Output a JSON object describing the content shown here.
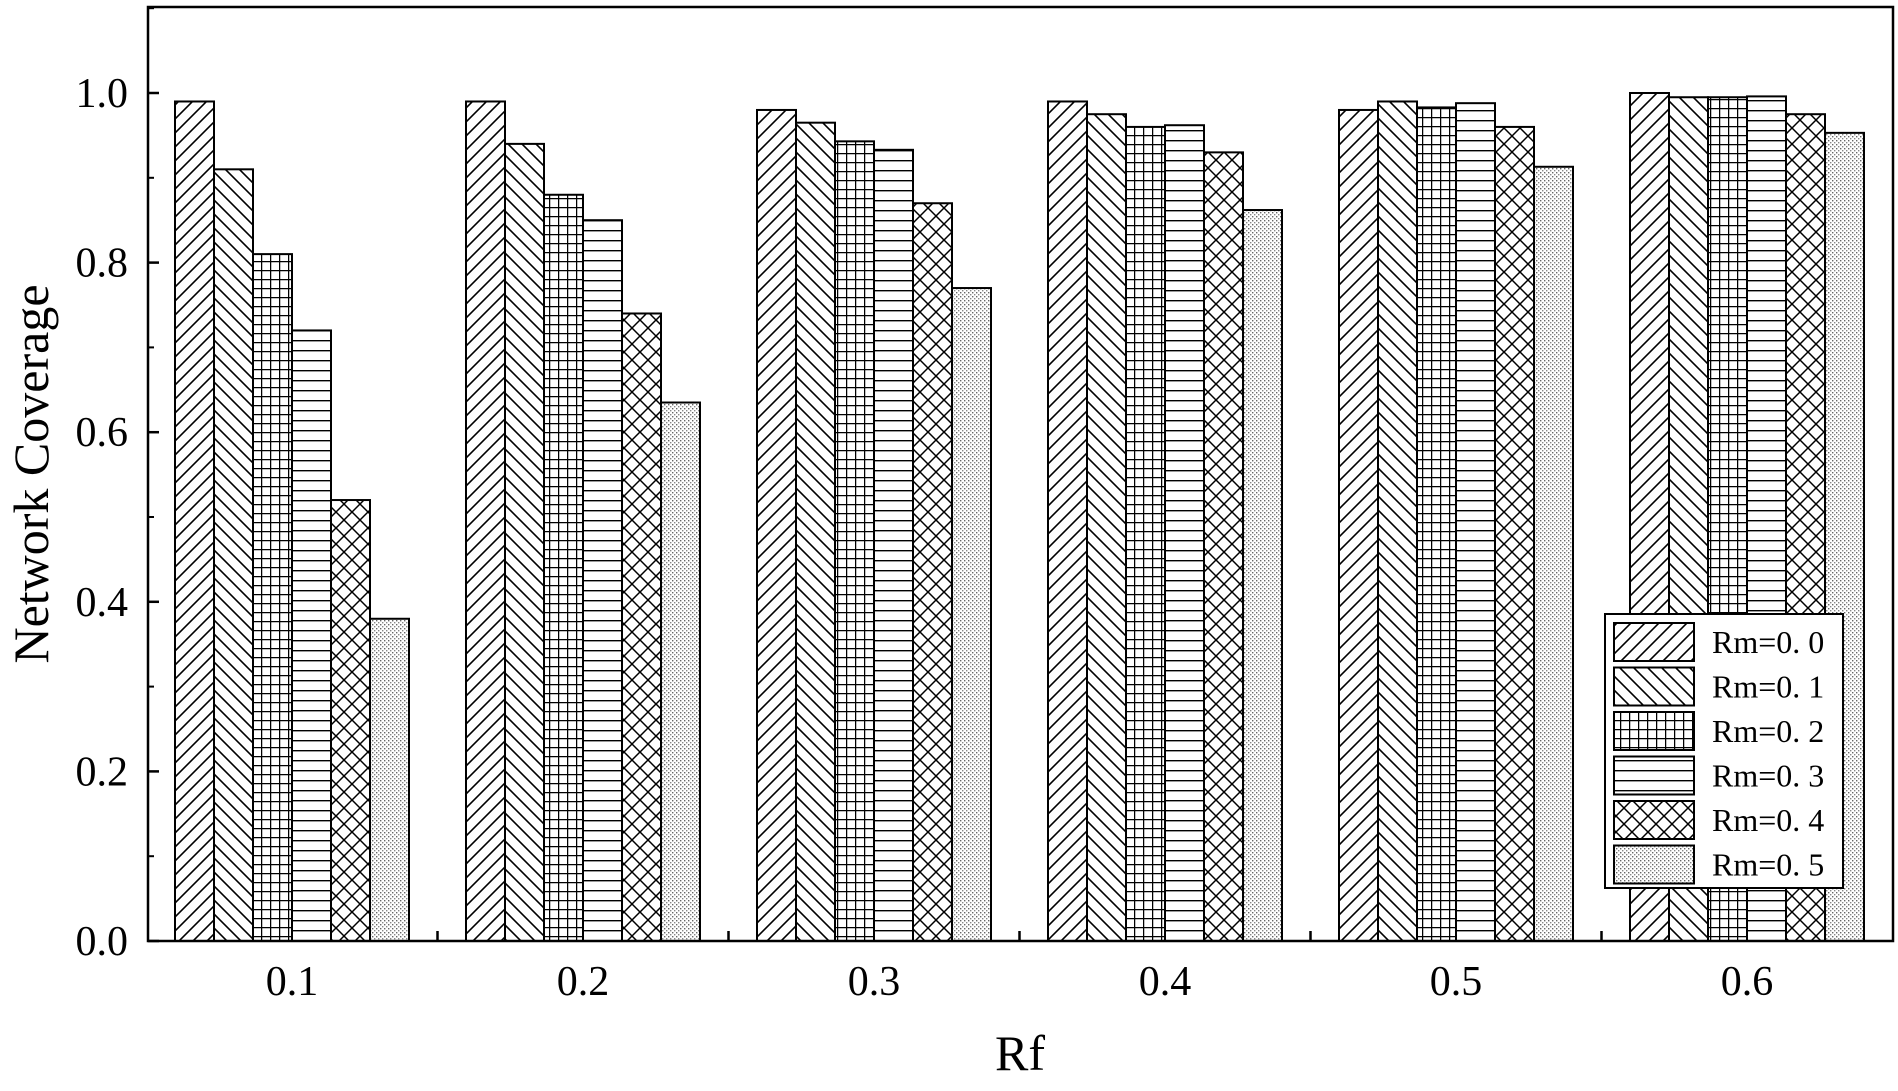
{
  "chart_data": {
    "type": "bar",
    "title": "",
    "xlabel": "Rf",
    "ylabel": "Network Coverage",
    "ylim": [
      0,
      1.1
    ],
    "yticks": [
      "0.0",
      "0.2",
      "0.4",
      "0.6",
      "0.8",
      "1.0"
    ],
    "categories": [
      "0.1",
      "0.2",
      "0.3",
      "0.4",
      "0.5",
      "0.6"
    ],
    "grid": false,
    "legend_position": "bottom-right",
    "series": [
      {
        "name": "Rm=0. 0",
        "pattern": "diag-up",
        "values": [
          0.99,
          0.99,
          0.98,
          0.99,
          0.98,
          1.0
        ]
      },
      {
        "name": "Rm=0. 1",
        "pattern": "diag-down",
        "values": [
          0.91,
          0.94,
          0.965,
          0.975,
          0.99,
          0.995
        ]
      },
      {
        "name": "Rm=0. 2",
        "pattern": "grid",
        "values": [
          0.81,
          0.88,
          0.943,
          0.96,
          0.983,
          0.995
        ]
      },
      {
        "name": "Rm=0. 3",
        "pattern": "horizontal",
        "values": [
          0.72,
          0.85,
          0.933,
          0.962,
          0.988,
          0.996
        ]
      },
      {
        "name": "Rm=0. 4",
        "pattern": "crosshatch",
        "values": [
          0.52,
          0.74,
          0.87,
          0.93,
          0.96,
          0.975
        ]
      },
      {
        "name": "Rm=0. 5",
        "pattern": "dots",
        "values": [
          0.38,
          0.635,
          0.77,
          0.862,
          0.913,
          0.953
        ]
      }
    ]
  }
}
